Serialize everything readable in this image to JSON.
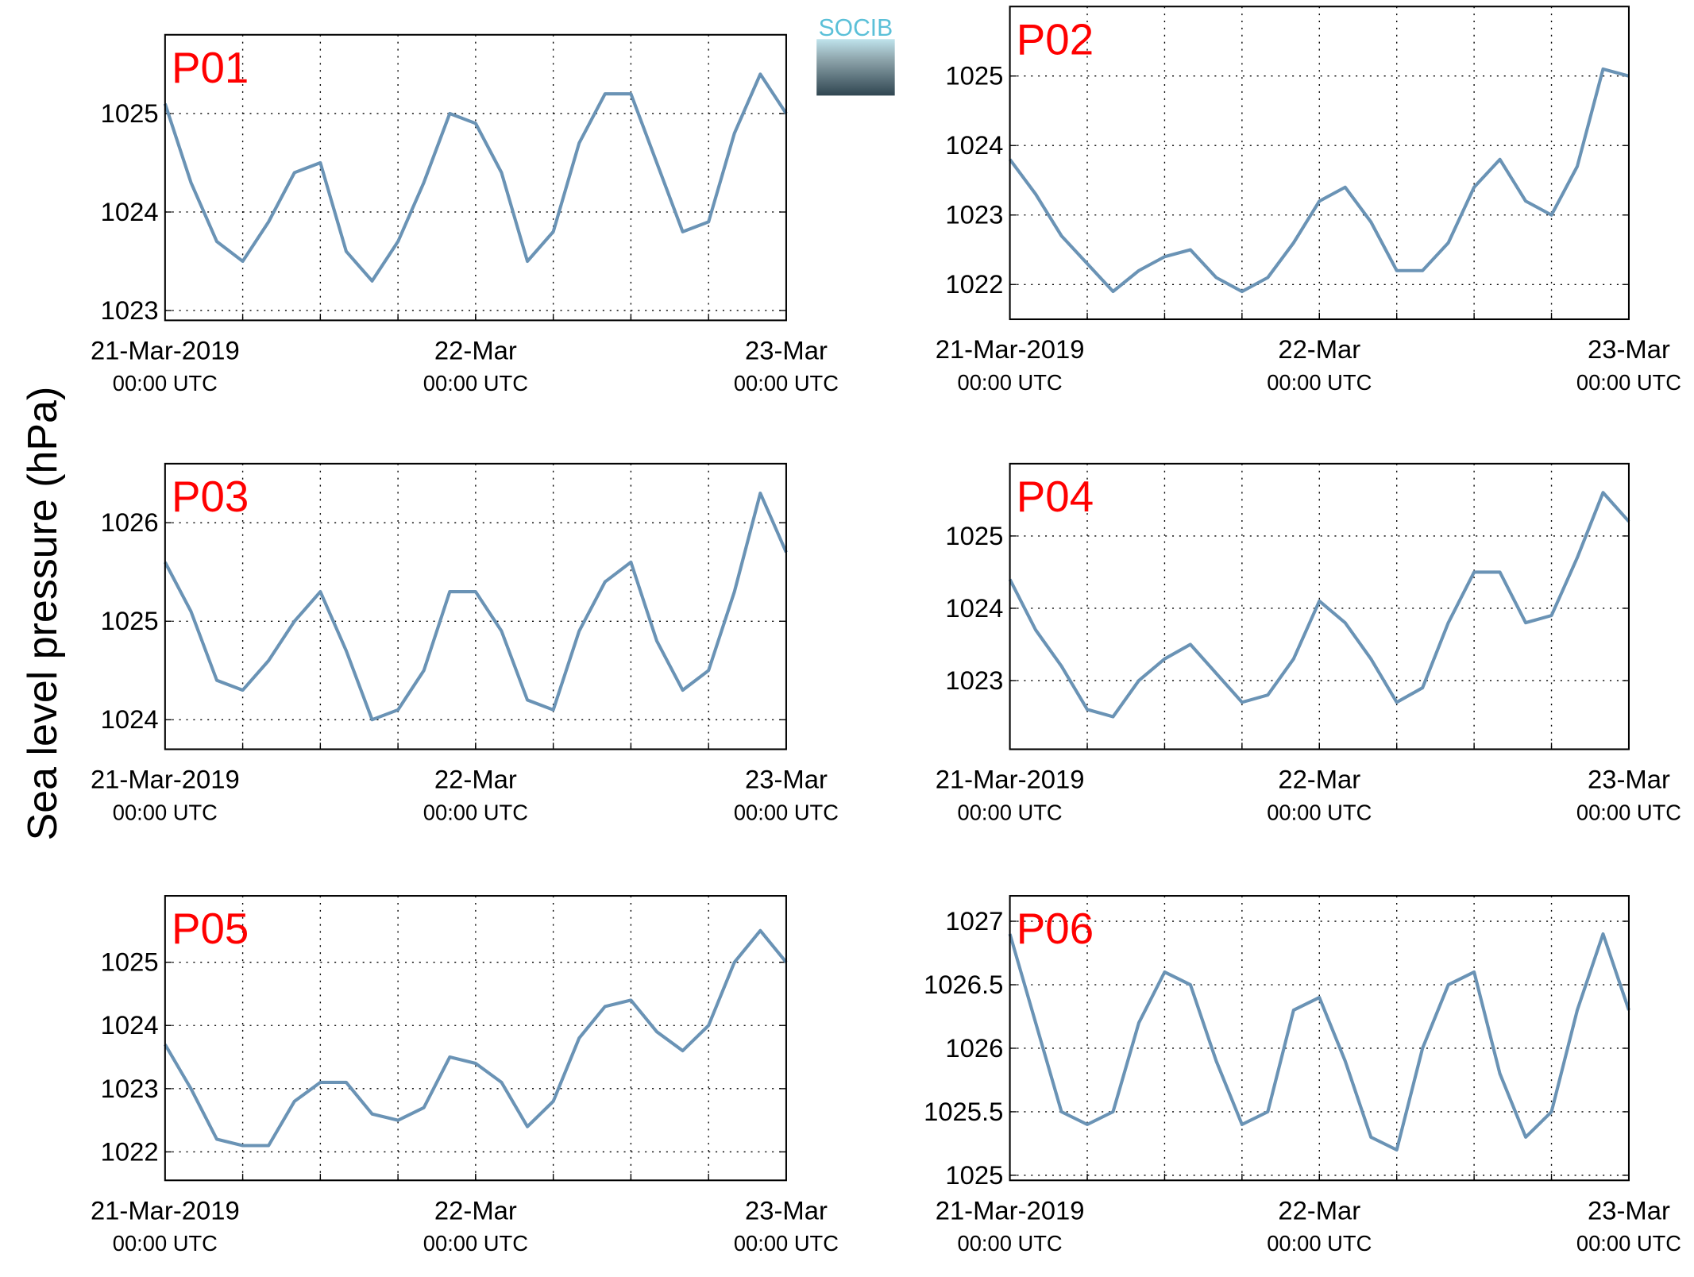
{
  "ylabel": "Sea level pressure (hPa)",
  "logo": "SOCIB",
  "chart_data": [
    {
      "type": "line",
      "title": "P01",
      "x": [
        0,
        2,
        4,
        6,
        8,
        10,
        12,
        14,
        16,
        18,
        20,
        22,
        24,
        26,
        28,
        30,
        32,
        34,
        36,
        38,
        40,
        42,
        44,
        46,
        48
      ],
      "series": [
        {
          "color": "#6a93b5",
          "values": [
            1025.1,
            1024.3,
            1023.7,
            1023.5,
            1023.9,
            1024.4,
            1024.5,
            1023.6,
            1023.3,
            1023.7,
            1024.3,
            1025.0,
            1024.9,
            1024.4,
            1023.5,
            1023.8,
            1024.7,
            1025.2,
            1025.2,
            1024.5,
            1023.8,
            1023.9,
            1024.8,
            1025.4,
            1025.0
          ]
        }
      ],
      "xlim": [
        0,
        48
      ],
      "xticks": [
        {
          "value": 0,
          "label": "21-Mar-2019\n00:00 UTC"
        },
        {
          "value": 24,
          "label": "22-Mar\n00:00 UTC"
        },
        {
          "value": 48,
          "label": "23-Mar\n00:00 UTC"
        }
      ],
      "xgrid": [
        6,
        12,
        18,
        24,
        30,
        36,
        42
      ],
      "ylim": [
        1022.9,
        1025.8
      ],
      "yticks": [
        1023,
        1024,
        1025
      ],
      "grid": true
    },
    {
      "type": "line",
      "title": "P02",
      "x": [
        0,
        2,
        4,
        6,
        8,
        10,
        12,
        14,
        16,
        18,
        20,
        22,
        24,
        26,
        28,
        30,
        32,
        34,
        36,
        38,
        40,
        42,
        44,
        46,
        48
      ],
      "series": [
        {
          "color": "#6a93b5",
          "values": [
            1023.8,
            1023.3,
            1022.7,
            1022.3,
            1021.9,
            1022.2,
            1022.4,
            1022.5,
            1022.1,
            1021.9,
            1022.1,
            1022.6,
            1023.2,
            1023.4,
            1022.9,
            1022.2,
            1022.2,
            1022.6,
            1023.4,
            1023.8,
            1023.2,
            1023.0,
            1023.7,
            1025.1,
            1025.0
          ]
        }
      ],
      "xlim": [
        0,
        48
      ],
      "xticks": [
        {
          "value": 0,
          "label": "21-Mar-2019\n00:00 UTC"
        },
        {
          "value": 24,
          "label": "22-Mar\n00:00 UTC"
        },
        {
          "value": 48,
          "label": "23-Mar\n00:00 UTC"
        }
      ],
      "xgrid": [
        6,
        12,
        18,
        24,
        30,
        36,
        42
      ],
      "ylim": [
        1021.5,
        1026
      ],
      "yticks": [
        1022,
        1023,
        1024,
        1025
      ],
      "grid": true
    },
    {
      "type": "line",
      "title": "P03",
      "x": [
        0,
        2,
        4,
        6,
        8,
        10,
        12,
        14,
        16,
        18,
        20,
        22,
        24,
        26,
        28,
        30,
        32,
        34,
        36,
        38,
        40,
        42,
        44,
        46,
        48
      ],
      "series": [
        {
          "color": "#6a93b5",
          "values": [
            1025.6,
            1025.1,
            1024.4,
            1024.3,
            1024.6,
            1025.0,
            1025.3,
            1024.7,
            1024.0,
            1024.1,
            1024.5,
            1025.3,
            1025.3,
            1024.9,
            1024.2,
            1024.1,
            1024.9,
            1025.4,
            1025.6,
            1024.8,
            1024.3,
            1024.5,
            1025.3,
            1026.3,
            1025.7
          ]
        }
      ],
      "xlim": [
        0,
        48
      ],
      "xticks": [
        {
          "value": 0,
          "label": "21-Mar-2019\n00:00 UTC"
        },
        {
          "value": 24,
          "label": "22-Mar\n00:00 UTC"
        },
        {
          "value": 48,
          "label": "23-Mar\n00:00 UTC"
        }
      ],
      "xgrid": [
        6,
        12,
        18,
        24,
        30,
        36,
        42
      ],
      "ylim": [
        1023.7,
        1026.6
      ],
      "yticks": [
        1024,
        1025,
        1026
      ],
      "grid": true
    },
    {
      "type": "line",
      "title": "P04",
      "x": [
        0,
        2,
        4,
        6,
        8,
        10,
        12,
        14,
        16,
        18,
        20,
        22,
        24,
        26,
        28,
        30,
        32,
        34,
        36,
        38,
        40,
        42,
        44,
        46,
        48
      ],
      "series": [
        {
          "color": "#6a93b5",
          "values": [
            1024.4,
            1023.7,
            1023.2,
            1022.6,
            1022.5,
            1023.0,
            1023.3,
            1023.5,
            1023.1,
            1022.7,
            1022.8,
            1023.3,
            1024.1,
            1023.8,
            1023.3,
            1022.7,
            1022.9,
            1023.8,
            1024.5,
            1024.5,
            1023.8,
            1023.9,
            1024.7,
            1025.6,
            1025.2
          ]
        }
      ],
      "xlim": [
        0,
        48
      ],
      "xticks": [
        {
          "value": 0,
          "label": "21-Mar-2019\n00:00 UTC"
        },
        {
          "value": 24,
          "label": "22-Mar\n00:00 UTC"
        },
        {
          "value": 48,
          "label": "23-Mar\n00:00 UTC"
        }
      ],
      "xgrid": [
        6,
        12,
        18,
        24,
        30,
        36,
        42
      ],
      "ylim": [
        1022.05,
        1026
      ],
      "yticks": [
        1023,
        1024,
        1025
      ],
      "grid": true
    },
    {
      "type": "line",
      "title": "P05",
      "x": [
        0,
        2,
        4,
        6,
        8,
        10,
        12,
        14,
        16,
        18,
        20,
        22,
        24,
        26,
        28,
        30,
        32,
        34,
        36,
        38,
        40,
        42,
        44,
        46,
        48
      ],
      "series": [
        {
          "color": "#6a93b5",
          "values": [
            1023.7,
            1023.0,
            1022.2,
            1022.1,
            1022.1,
            1022.8,
            1023.1,
            1023.1,
            1022.6,
            1022.5,
            1022.7,
            1023.5,
            1023.4,
            1023.1,
            1022.4,
            1022.8,
            1023.8,
            1024.3,
            1024.4,
            1023.9,
            1023.6,
            1024.0,
            1025.0,
            1025.5,
            1025.0
          ]
        }
      ],
      "xlim": [
        0,
        48
      ],
      "xticks": [
        {
          "value": 0,
          "label": "21-Mar-2019\n00:00 UTC"
        },
        {
          "value": 24,
          "label": "22-Mar\n00:00 UTC"
        },
        {
          "value": 48,
          "label": "23-Mar\n00:00 UTC"
        }
      ],
      "xgrid": [
        6,
        12,
        18,
        24,
        30,
        36,
        42
      ],
      "ylim": [
        1021.55,
        1026.05
      ],
      "yticks": [
        1022,
        1023,
        1024,
        1025
      ],
      "grid": true
    },
    {
      "type": "line",
      "title": "P06",
      "x": [
        0,
        2,
        4,
        6,
        8,
        10,
        12,
        14,
        16,
        18,
        20,
        22,
        24,
        26,
        28,
        30,
        32,
        34,
        36,
        38,
        40,
        42,
        44,
        46,
        48
      ],
      "series": [
        {
          "color": "#6a93b5",
          "values": [
            1026.9,
            1026.2,
            1025.5,
            1025.4,
            1025.5,
            1026.2,
            1026.6,
            1026.5,
            1025.9,
            1025.4,
            1025.5,
            1026.3,
            1026.4,
            1025.9,
            1025.3,
            1025.2,
            1026.0,
            1026.5,
            1026.6,
            1025.8,
            1025.3,
            1025.5,
            1026.3,
            1026.9,
            1026.3
          ]
        }
      ],
      "xlim": [
        0,
        48
      ],
      "xticks": [
        {
          "value": 0,
          "label": "21-Mar-2019\n00:00 UTC"
        },
        {
          "value": 24,
          "label": "22-Mar\n00:00 UTC"
        },
        {
          "value": 48,
          "label": "23-Mar\n00:00 UTC"
        }
      ],
      "xgrid": [
        6,
        12,
        18,
        24,
        30,
        36,
        42
      ],
      "ylim": [
        1024.96,
        1027.2
      ],
      "yticks": [
        1025,
        1025.5,
        1026,
        1026.5,
        1027
      ],
      "grid": true
    }
  ]
}
